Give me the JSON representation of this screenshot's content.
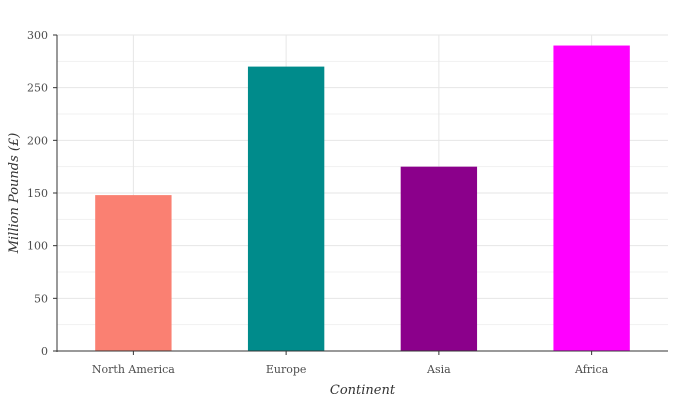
{
  "chart_data": {
    "type": "bar",
    "title": "",
    "xlabel": "Continent",
    "ylabel": "Million Pounds (£)",
    "categories": [
      "North America",
      "Europe",
      "Asia",
      "Africa"
    ],
    "values": [
      148,
      270,
      175,
      290
    ],
    "colors": [
      "#fa8072",
      "#008b8b",
      "#8b008b",
      "#ff00ff"
    ],
    "ylim": [
      0,
      300
    ],
    "yticks": [
      0,
      50,
      100,
      150,
      200,
      250,
      300
    ],
    "grid": true,
    "legend": "none"
  }
}
